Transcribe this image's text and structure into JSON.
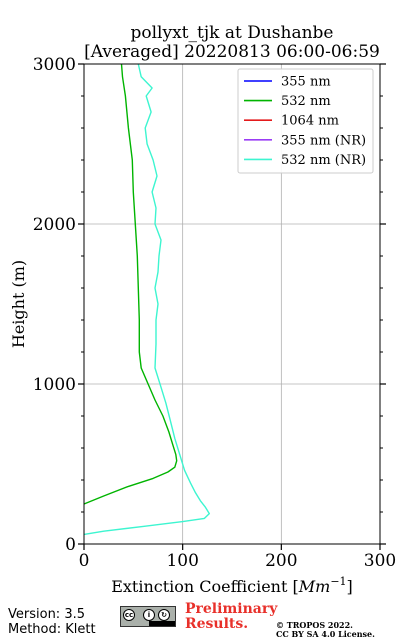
{
  "chart_data": {
    "type": "line",
    "title": "pollyxt_tjk at Dushanbe",
    "subtitle": "[Averaged] 20220813 06:00-06:59",
    "xlabel": "Extinction Coefficient [",
    "xlabel_unit": "Mm",
    "xlabel_exp": "−1",
    "xlabel_end": "]",
    "ylabel": "Height (m)",
    "xlim": [
      0,
      300
    ],
    "ylim": [
      0,
      3000
    ],
    "xticks": [
      0,
      100,
      200,
      300
    ],
    "yticks": [
      0,
      1000,
      2000,
      3000
    ],
    "grid": true,
    "legend_position": "top-right",
    "series": [
      {
        "name": "355 nm",
        "color": "#0000ff",
        "points": []
      },
      {
        "name": "532 nm",
        "color": "#00b400",
        "points": [
          [
            0,
            250
          ],
          [
            20,
            300
          ],
          [
            45,
            360
          ],
          [
            70,
            410
          ],
          [
            85,
            450
          ],
          [
            92,
            480
          ],
          [
            94,
            520
          ],
          [
            93,
            560
          ],
          [
            90,
            620
          ],
          [
            86,
            700
          ],
          [
            80,
            800
          ],
          [
            72,
            900
          ],
          [
            65,
            1000
          ],
          [
            58,
            1100
          ],
          [
            56,
            1200
          ],
          [
            56,
            1400
          ],
          [
            55,
            1600
          ],
          [
            54,
            1800
          ],
          [
            52,
            2000
          ],
          [
            50,
            2200
          ],
          [
            49,
            2400
          ],
          [
            45,
            2600
          ],
          [
            42,
            2800
          ],
          [
            39,
            2920
          ],
          [
            38,
            3000
          ]
        ]
      },
      {
        "name": "1064 nm",
        "color": "#e41a1c",
        "points": []
      },
      {
        "name": "355 nm (NR)",
        "color": "#9b3df5",
        "points": []
      },
      {
        "name": "532 nm (NR)",
        "color": "#3df5d0",
        "points": [
          [
            0,
            60
          ],
          [
            20,
            80
          ],
          [
            60,
            110
          ],
          [
            100,
            140
          ],
          [
            122,
            160
          ],
          [
            127,
            190
          ],
          [
            123,
            230
          ],
          [
            118,
            270
          ],
          [
            113,
            320
          ],
          [
            108,
            380
          ],
          [
            102,
            460
          ],
          [
            97,
            560
          ],
          [
            92,
            660
          ],
          [
            88,
            760
          ],
          [
            83,
            880
          ],
          [
            78,
            980
          ],
          [
            72,
            1100
          ],
          [
            73,
            1250
          ],
          [
            73,
            1400
          ],
          [
            75,
            1500
          ],
          [
            72,
            1600
          ],
          [
            75,
            1700
          ],
          [
            76,
            1800
          ],
          [
            78,
            1900
          ],
          [
            72,
            2000
          ],
          [
            73,
            2100
          ],
          [
            69,
            2200
          ],
          [
            74,
            2300
          ],
          [
            70,
            2400
          ],
          [
            64,
            2500
          ],
          [
            62,
            2600
          ],
          [
            68,
            2700
          ],
          [
            63,
            2800
          ],
          [
            69,
            2850
          ],
          [
            58,
            2920
          ],
          [
            55,
            3000
          ]
        ]
      }
    ]
  },
  "footer": {
    "version": "Version: 3.5",
    "method": "Method: Klett",
    "prelim_line1": "Preliminary",
    "prelim_line2": "Results.",
    "copyright_line1": "© TROPOS 2022.",
    "copyright_line2": "CC BY SA 4.0 License.",
    "cc_logo_text": "BY SA"
  }
}
